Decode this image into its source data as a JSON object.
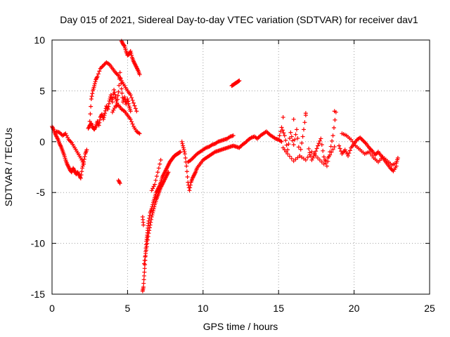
{
  "chart_data": {
    "type": "scatter",
    "title": "Day 015 of 2021, Sidereal Day-to-day VTEC variation (SDTVAR) for receiver dav1",
    "xlabel": "GPS time / hours",
    "ylabel": "SDTVAR / TECUs",
    "xlim": [
      0,
      25
    ],
    "ylim": [
      -15,
      10
    ],
    "x_ticks": [
      0,
      5,
      10,
      15,
      20,
      25
    ],
    "x_tick_labels": [
      "0",
      "5",
      "10",
      "15",
      "20",
      "25"
    ],
    "y_ticks": [
      -15,
      -10,
      -5,
      0,
      5,
      10
    ],
    "y_tick_labels": [
      "-15",
      "-10",
      "-5",
      "0",
      "5",
      "10"
    ],
    "grid": true,
    "marker": "plus",
    "color": "#ff0000",
    "series": [
      {
        "name": "dav1",
        "x": [
          0.0,
          0.1,
          0.2,
          0.3,
          0.4,
          0.5,
          0.6,
          0.7,
          0.8,
          0.9,
          1.0,
          1.1,
          1.2,
          1.3,
          1.4,
          1.5,
          1.6,
          1.7,
          1.8,
          1.9,
          2.0,
          2.1,
          2.2,
          2.3,
          0.3,
          0.5,
          0.7,
          0.9,
          1.1,
          1.3,
          1.5,
          1.7,
          1.9,
          2.1,
          2.4,
          2.5,
          2.6,
          2.7,
          2.8,
          2.9,
          3.0,
          3.1,
          3.2,
          3.3,
          3.4,
          3.5,
          3.6,
          3.7,
          3.8,
          3.9,
          4.0,
          4.1,
          4.2,
          4.3,
          4.4,
          4.5,
          4.6,
          4.7,
          4.8,
          4.9,
          5.0,
          5.1,
          5.2,
          2.5,
          2.6,
          2.7,
          2.8,
          2.9,
          3.0,
          3.2,
          3.4,
          3.6,
          3.8,
          4.0,
          4.2,
          4.4,
          4.6,
          4.8,
          5.0,
          5.2,
          5.4,
          5.6,
          4.0,
          4.2,
          4.4,
          4.6,
          4.8,
          5.0,
          5.2,
          5.4,
          5.6,
          5.8,
          4.6,
          4.7,
          4.8,
          4.9,
          5.0,
          5.1,
          5.2,
          5.3,
          5.4,
          5.5,
          5.6,
          5.7,
          5.8,
          4.4,
          4.5,
          6.0,
          6.05,
          6.0,
          6.05,
          6.1,
          6.15,
          6.2,
          6.25,
          6.3,
          6.35,
          6.4,
          6.5,
          6.6,
          6.7,
          6.8,
          6.9,
          7.0,
          7.1,
          7.2,
          7.3,
          7.4,
          7.5,
          7.6,
          7.7,
          7.8,
          7.9,
          8.0,
          8.1,
          8.2,
          8.3,
          8.4,
          8.5,
          6.1,
          6.2,
          6.3,
          6.4,
          6.5,
          6.6,
          6.7,
          6.8,
          6.9,
          7.0,
          7.1,
          7.2,
          7.3,
          7.4,
          7.5,
          7.6,
          7.7,
          6.6,
          6.8,
          7.0,
          7.2,
          8.6,
          8.7,
          8.8,
          8.9,
          9.0,
          9.1,
          9.2,
          9.3,
          9.4,
          9.5,
          9.6,
          9.8,
          10.0,
          10.2,
          10.4,
          10.6,
          10.8,
          11.0,
          11.2,
          11.4,
          11.6,
          11.8,
          12.0,
          12.2,
          12.4,
          12.6,
          12.8,
          13.0,
          13.2,
          13.4,
          13.6,
          13.8,
          14.0,
          14.2,
          14.4,
          14.6,
          14.8,
          15.0,
          15.2,
          9.0,
          9.2,
          9.4,
          9.6,
          9.8,
          10.0,
          10.2,
          10.4,
          10.6,
          10.8,
          11.0,
          11.2,
          11.4,
          11.6,
          11.8,
          12.0,
          11.9,
          12.0,
          12.1,
          12.2,
          12.3,
          12.4,
          15.0,
          15.2,
          15.4,
          15.6,
          15.8,
          16.0,
          16.2,
          16.4,
          16.6,
          16.8,
          17.0,
          17.2,
          17.4,
          17.6,
          17.8,
          18.0,
          18.2,
          18.4,
          18.6,
          18.8,
          15.3,
          15.6,
          16.0,
          16.4,
          16.8,
          17.2,
          17.6,
          18.0,
          18.4,
          18.7,
          15.3,
          16.0,
          16.8,
          18.7,
          19.0,
          19.2,
          19.4,
          19.6,
          19.8,
          20.0,
          20.2,
          20.4,
          20.6,
          20.8,
          21.0,
          21.2,
          21.4,
          21.6,
          21.8,
          22.0,
          22.2,
          22.4,
          22.6,
          22.8,
          19.2,
          19.5,
          19.8,
          20.1,
          20.4,
          20.7,
          21.0,
          21.3,
          21.6,
          21.9,
          22.2,
          22.5,
          22.8,
          22.9
        ],
        "y": [
          1.5,
          1.2,
          0.8,
          0.5,
          0.2,
          -0.2,
          -0.5,
          -0.9,
          -1.3,
          -1.8,
          -2.2,
          -2.5,
          -2.8,
          -3.0,
          -2.6,
          -2.9,
          -3.2,
          -3.0,
          -3.3,
          -3.6,
          -2.6,
          -2.0,
          -1.2,
          -0.8,
          1.0,
          0.9,
          0.6,
          0.8,
          0.2,
          -0.1,
          -0.6,
          -1.1,
          -1.6,
          -2.2,
          1.3,
          1.6,
          1.8,
          1.4,
          1.2,
          1.5,
          2.0,
          1.6,
          2.4,
          2.7,
          2.2,
          2.8,
          3.5,
          3.2,
          4.0,
          4.6,
          3.9,
          5.1,
          4.4,
          3.8,
          4.9,
          6.8,
          5.2,
          3.9,
          4.4,
          3.7,
          4.2,
          3.5,
          3.0,
          2.0,
          4.2,
          5.0,
          5.5,
          6.1,
          6.4,
          7.2,
          7.5,
          7.8,
          7.6,
          7.2,
          6.8,
          6.5,
          6.0,
          5.5,
          5.0,
          4.6,
          3.8,
          3.0,
          2.9,
          3.5,
          3.6,
          3.2,
          3.0,
          2.6,
          2.2,
          1.5,
          1.0,
          0.8,
          9.9,
          9.6,
          9.4,
          8.9,
          8.5,
          8.6,
          8.9,
          8.3,
          7.9,
          7.6,
          7.3,
          7.0,
          6.6,
          -3.8,
          -4.1,
          -7.4,
          -8.2,
          -14.7,
          -14.3,
          -13.2,
          -12.1,
          -10.8,
          -9.8,
          -9.2,
          -8.5,
          -7.8,
          -7.0,
          -6.6,
          -6.0,
          -5.5,
          -5.0,
          -4.7,
          -4.4,
          -4.0,
          -3.5,
          -3.2,
          -2.9,
          -2.6,
          -2.3,
          -2.0,
          -1.8,
          -1.6,
          -1.4,
          -1.3,
          -1.2,
          -1.1,
          -1.0,
          -12.0,
          -11.0,
          -10.0,
          -9.0,
          -8.2,
          -7.4,
          -6.8,
          -6.2,
          -5.7,
          -5.3,
          -4.9,
          -4.5,
          -4.2,
          -3.9,
          -3.6,
          -3.3,
          -3.0,
          -4.8,
          -4.2,
          -3.0,
          -1.8,
          0.0,
          -0.6,
          -1.2,
          -2.4,
          -4.0,
          -4.8,
          -4.0,
          -3.6,
          -3.3,
          -3.0,
          -2.6,
          -2.2,
          -1.8,
          -1.6,
          -1.4,
          -1.2,
          -1.0,
          -0.9,
          -0.8,
          -0.7,
          -0.6,
          -0.5,
          -0.4,
          -0.5,
          -0.6,
          -0.3,
          -0.1,
          0.2,
          0.4,
          0.5,
          0.3,
          0.6,
          0.8,
          1.0,
          0.7,
          0.5,
          0.3,
          0.2,
          0.0,
          -2.0,
          -1.8,
          -1.5,
          -1.2,
          -1.0,
          -0.8,
          -0.6,
          -0.5,
          -0.3,
          -0.2,
          0.0,
          0.1,
          0.2,
          0.3,
          0.5,
          0.6,
          5.5,
          5.6,
          5.7,
          5.8,
          5.9,
          6.0,
          0.2,
          1.4,
          0.6,
          -0.8,
          0.9,
          -0.3,
          1.2,
          -1.4,
          0.5,
          2.6,
          -0.7,
          -1.8,
          -1.2,
          -0.4,
          0.3,
          -1.5,
          -2.4,
          -1.0,
          0.6,
          2.9,
          -0.6,
          -1.2,
          -1.9,
          -1.4,
          -1.8,
          -1.0,
          -1.6,
          -2.2,
          -1.3,
          -0.5,
          2.4,
          2.2,
          2.8,
          3.0,
          -0.4,
          -1.2,
          -0.8,
          -1.4,
          -0.6,
          -0.2,
          0.2,
          0.4,
          0.1,
          -0.2,
          -0.6,
          -0.9,
          -1.3,
          -1.0,
          -1.4,
          -1.8,
          -2.2,
          -2.6,
          -2.9,
          -2.4,
          0.8,
          0.6,
          0.2,
          -0.4,
          -0.8,
          -1.2,
          -1.0,
          -1.6,
          -2.0,
          -1.5,
          -1.9,
          -2.3,
          -2.1,
          -1.6
        ]
      }
    ]
  }
}
